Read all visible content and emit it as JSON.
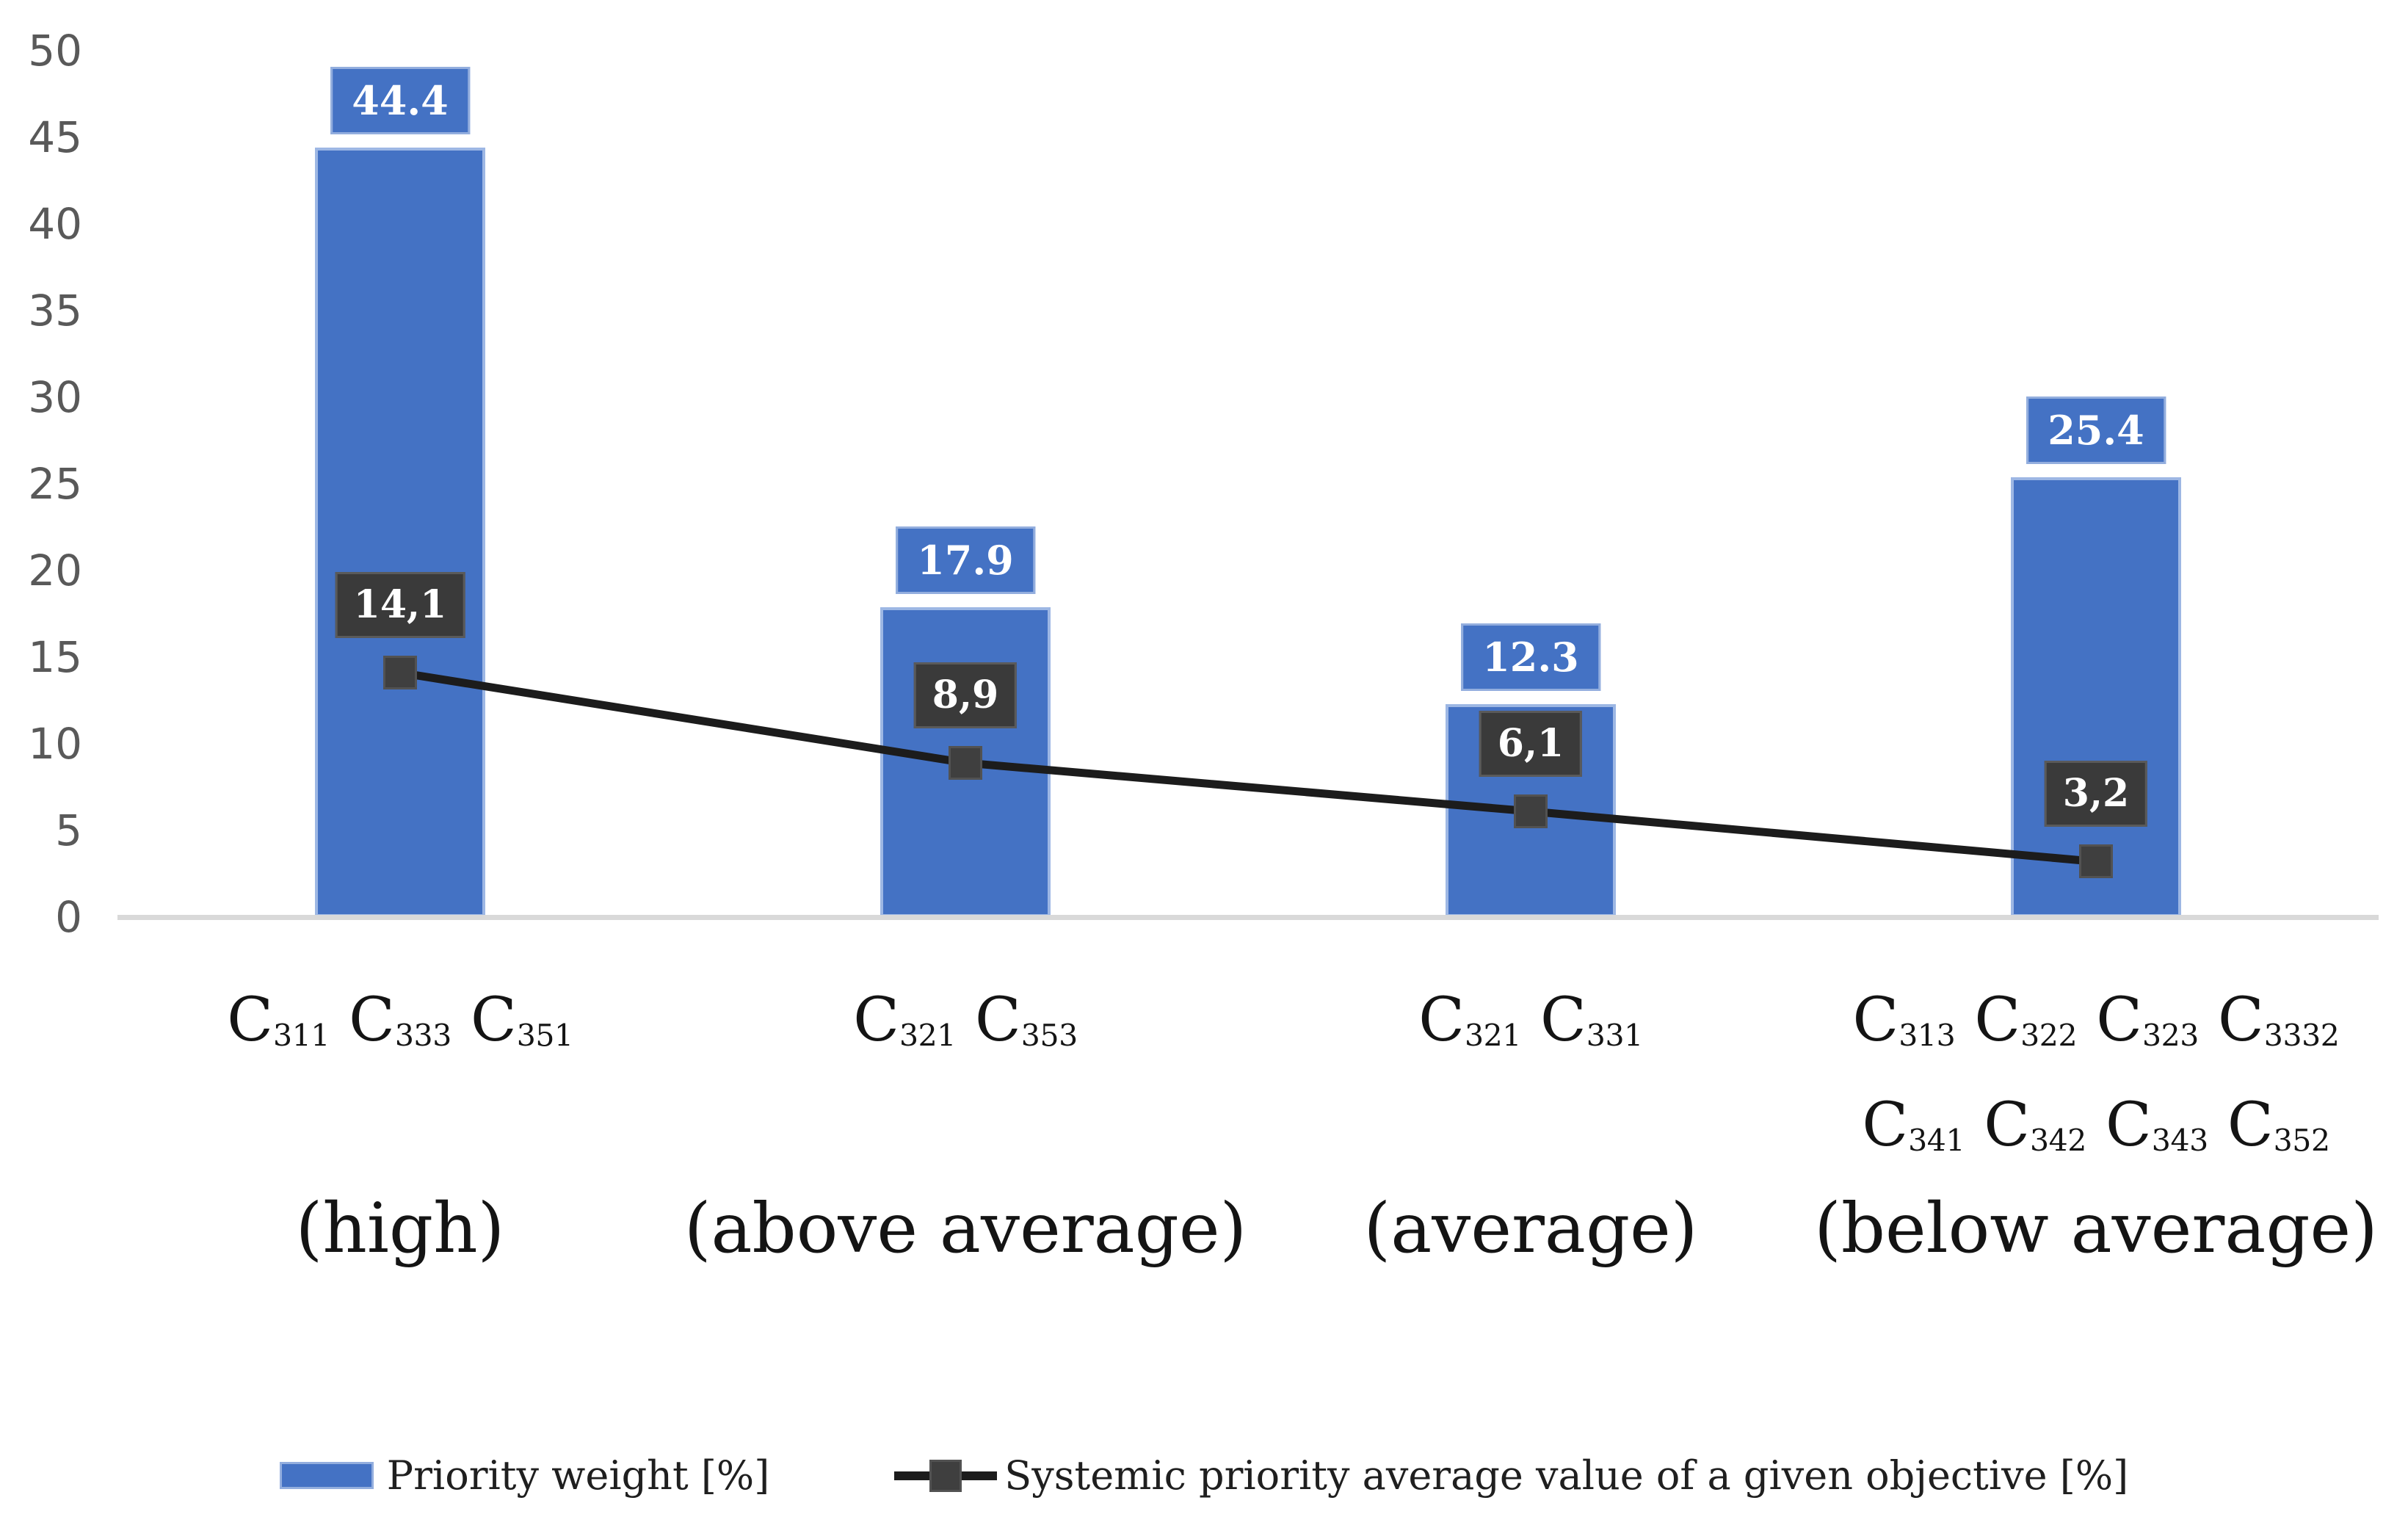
{
  "chart_data": {
    "type": "bar",
    "combo": "bar-and-line",
    "grid": false,
    "legend_position": "bottom",
    "y_axis": {
      "min": 0,
      "max": 50,
      "step": 5,
      "tick_labels": [
        "0",
        "5",
        "10",
        "15",
        "20",
        "25",
        "30",
        "35",
        "40",
        "45",
        "50"
      ]
    },
    "categories": [
      {
        "codes_line1": [
          "C311",
          "C333",
          "C351"
        ],
        "codes_line2": [],
        "qualifier": "(high)"
      },
      {
        "codes_line1": [
          "C321",
          "C353"
        ],
        "codes_line2": [],
        "qualifier": "(above average)"
      },
      {
        "codes_line1": [
          "C321",
          "C331"
        ],
        "codes_line2": [],
        "qualifier": "(average)"
      },
      {
        "codes_line1": [
          "C313",
          "C322",
          "C323",
          "C3332"
        ],
        "codes_line2": [
          "C341",
          "C342",
          "C343",
          "C352"
        ],
        "qualifier": "(below average)"
      }
    ],
    "series": [
      {
        "name": "Priority weight [%]",
        "type": "bar",
        "color": "#4472C4",
        "values": [
          44.4,
          17.9,
          12.3,
          25.4
        ],
        "labels": [
          "44.4",
          "17.9",
          "12.3",
          "25.4"
        ],
        "label_bg": "#4472C4",
        "label_text_color": "#ffffff"
      },
      {
        "name": "Systemic priority average value of a given objective [%]",
        "type": "line",
        "color": "#1c1c1c",
        "marker": "square",
        "marker_color": "#3f3f3f",
        "values": [
          14.1,
          8.9,
          6.1,
          3.2
        ],
        "labels": [
          "14,1",
          "8,9",
          "6,1",
          "3,2"
        ],
        "label_bg": "#3a3a3a",
        "label_text_color": "#ffffff"
      }
    ],
    "axis_line_color": "#d9d9d9",
    "tick_label_color": "#595959"
  }
}
